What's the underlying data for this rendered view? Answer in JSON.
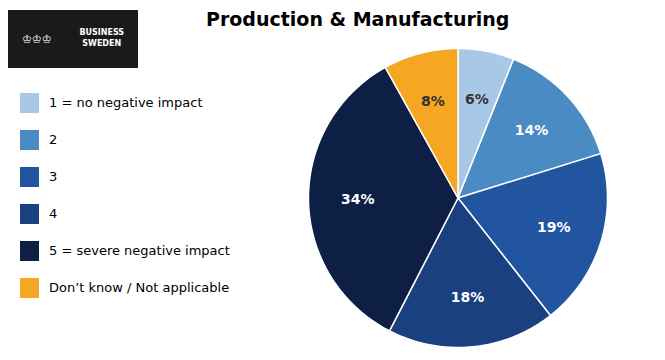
{
  "chart_data": {
    "type": "pie",
    "title": "Production & Manufacturing",
    "categories": [
      "1 = no negative impact",
      "2",
      "3",
      "4",
      "5 = severe negative impact",
      "Don’t know / Not applicable"
    ],
    "values": [
      6,
      14,
      19,
      18,
      34,
      8
    ],
    "value_labels": [
      "6%",
      "14%",
      "19%",
      "18%",
      "34%",
      "8%"
    ],
    "colors": [
      "#a8c8e8",
      "#4a8bc4",
      "#2255a0",
      "#1a4080",
      "#0d1f45",
      "#f5a623"
    ],
    "data_labels": true,
    "legend": "upper left",
    "annotations": [
      "♔♔♔",
      "BUSINESS\nSWEDEN"
    ]
  }
}
